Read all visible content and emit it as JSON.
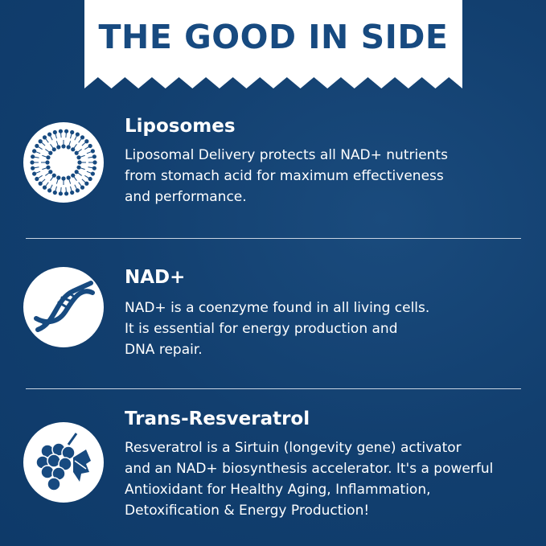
{
  "banner": {
    "title": "THE GOOD IN SIDE"
  },
  "colors": {
    "background": "#103f70",
    "banner": "#ffffff",
    "title": "#174a80"
  },
  "sections": [
    {
      "icon": "liposome-icon",
      "title": "Liposomes",
      "lines": [
        "Liposomal Delivery protects all NAD+ nutrients",
        "from stomach acid for maximum effectiveness",
        "and performance."
      ]
    },
    {
      "icon": "dna-icon",
      "title": "NAD+",
      "lines": [
        "NAD+ is a coenzyme found in all living cells.",
        "It is essential for energy production and",
        "DNA repair."
      ]
    },
    {
      "icon": "grapes-icon",
      "title": "Trans-Resveratrol",
      "lines": [
        "Resveratrol is a Sirtuin (longevity gene) activator",
        "and an NAD+ biosynthesis accelerator. It's a powerful",
        "Antioxidant for Healthy Aging, Inflammation,",
        "Detoxification & Energy Production!"
      ]
    }
  ]
}
